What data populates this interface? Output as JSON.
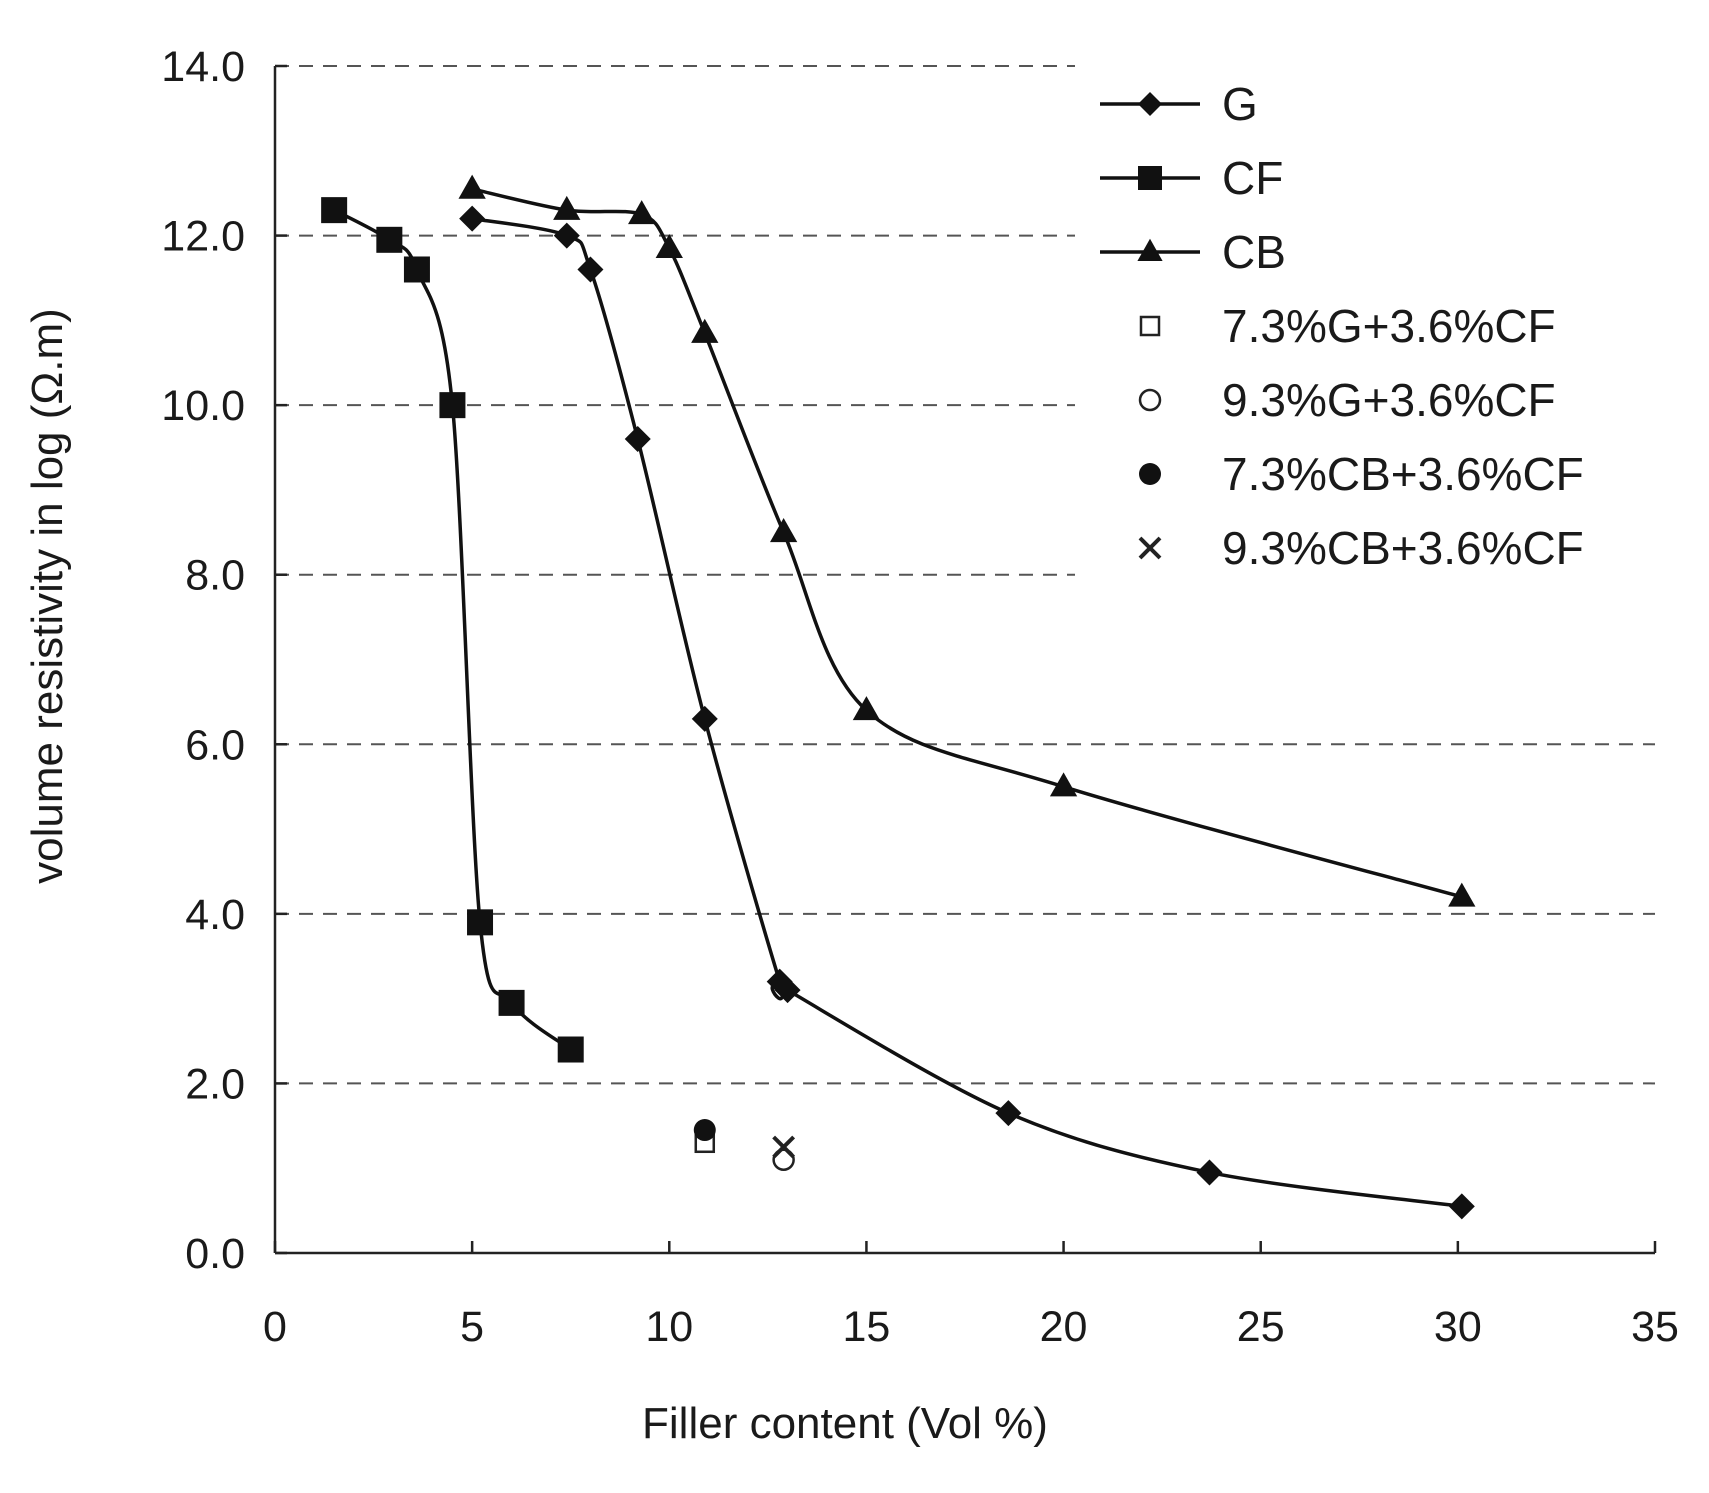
{
  "chart_data": {
    "type": "line",
    "title": "",
    "xlabel": "Filler content (Vol %)",
    "ylabel": "volume resistivity in log (Ω.m)",
    "xlim": [
      0,
      35
    ],
    "ylim": [
      0,
      14
    ],
    "x_ticks": [
      "0",
      "5",
      "10",
      "15",
      "20",
      "25",
      "30",
      "35"
    ],
    "x_tick_values": [
      0,
      5,
      10,
      15,
      20,
      25,
      30,
      35
    ],
    "y_ticks": [
      "0.0",
      "2.0",
      "4.0",
      "6.0",
      "8.0",
      "10.0",
      "12.0",
      "14.0"
    ],
    "y_tick_values": [
      0,
      2,
      4,
      6,
      8,
      10,
      12,
      14
    ],
    "grid": "horizontal dashed",
    "legend_position": "top-right",
    "series": [
      {
        "name": "G",
        "marker": "diamond",
        "line": true,
        "x": [
          5,
          7.4,
          8,
          9.2,
          10.9,
          12.8,
          13,
          18.6,
          23.7,
          30.1
        ],
        "y": [
          12.2,
          12.0,
          11.6,
          9.6,
          6.3,
          3.2,
          3.1,
          1.65,
          0.95,
          0.55
        ]
      },
      {
        "name": "CF",
        "marker": "square",
        "line": true,
        "x": [
          1.5,
          2.9,
          3.6,
          4.5,
          5.2,
          6,
          7.5
        ],
        "y": [
          12.3,
          11.95,
          11.6,
          10.0,
          3.9,
          2.95,
          2.4
        ]
      },
      {
        "name": "CB",
        "marker": "triangle",
        "line": true,
        "x": [
          5,
          7.4,
          9.3,
          10,
          10.9,
          12.9,
          15,
          20,
          30.1
        ],
        "y": [
          12.55,
          12.3,
          12.25,
          11.85,
          10.85,
          8.5,
          6.4,
          5.5,
          4.2
        ]
      },
      {
        "name": "7.3%G+3.6%CF",
        "marker": "open-square",
        "line": false,
        "x": [
          10.9
        ],
        "y": [
          1.3
        ]
      },
      {
        "name": "9.3%G+3.6%CF",
        "marker": "open-circle",
        "line": false,
        "x": [
          12.9
        ],
        "y": [
          1.1
        ]
      },
      {
        "name": "7.3%CB+3.6%CF",
        "marker": "filled-circle",
        "line": false,
        "x": [
          10.9
        ],
        "y": [
          1.45
        ]
      },
      {
        "name": "9.3%CB+3.6%CF",
        "marker": "x",
        "line": false,
        "x": [
          12.9
        ],
        "y": [
          1.25
        ]
      }
    ]
  }
}
